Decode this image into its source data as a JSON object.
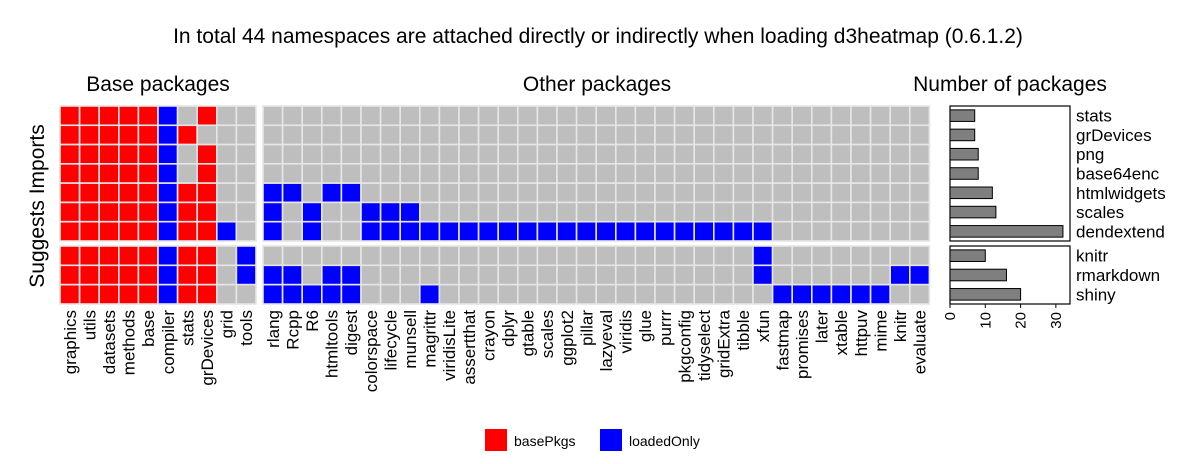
{
  "chart_data": {
    "type": "heatmap",
    "title": "In total 44 namespaces are attached directly or indirectly when loading d3heatmap (0.6.1.2)",
    "ylabel": "Suggests Imports",
    "facet_labels": [
      "Base packages",
      "Other packages",
      "Number of packages"
    ],
    "base_columns": [
      "graphics",
      "utils",
      "datasets",
      "methods",
      "base",
      "compiler",
      "stats",
      "grDevices",
      "grid",
      "tools"
    ],
    "other_columns": [
      "rlang",
      "Rcpp",
      "R6",
      "htmltools",
      "digest",
      "colorspace",
      "lifecycle",
      "munsell",
      "magrittr",
      "viridisLite",
      "assertthat",
      "crayon",
      "dplyr",
      "gtable",
      "scales",
      "ggplot2",
      "pillar",
      "lazyeval",
      "viridis",
      "glue",
      "purrr",
      "pkgconfig",
      "tidyselect",
      "gridExtra",
      "tibble",
      "xfun",
      "fastmap",
      "promises",
      "later",
      "xtable",
      "httpuv",
      "mime",
      "knitr",
      "evaluate"
    ],
    "imports_rows": [
      "stats",
      "grDevices",
      "png",
      "base64enc",
      "htmlwidgets",
      "scales",
      "dendextend"
    ],
    "suggests_rows": [
      "knitr",
      "rmarkdown",
      "shiny"
    ],
    "base_fill": {
      "stats": "RRRRRB_R__",
      "grDevices": "RRRRRBR___",
      "png": "RRRRRB_R__",
      "base64enc": "RRRRRB_R__",
      "htmlwidgets": "RRRRRBRR__",
      "scales": "RRRRRBRR__",
      "dendextend": "RRRRRBRRB_",
      "knitr": "RRRRRBRR_B",
      "rmarkdown": "RRRRRBRR_B",
      "shiny": "RRRRRBRR__"
    },
    "other_fill": {
      "stats": "__________________________________",
      "grDevices": "__________________________________",
      "png": "__________________________________",
      "base64enc": "__________________________________",
      "htmlwidgets": "BB_BB_____________________________",
      "scales": "B_B__BBB__________________________",
      "dendextend": "B_B__BBBBBBBBBBBBBBBBBBBBB________",
      "knitr": "_________________________B________",
      "rmarkdown": "BB_BB____________________B______BB",
      "shiny": "BBBBB___B_________________BBBBBB__"
    },
    "counts": {
      "categories": [
        "stats",
        "grDevices",
        "png",
        "base64enc",
        "htmlwidgets",
        "scales",
        "dendextend",
        "knitr",
        "rmarkdown",
        "shiny"
      ],
      "values": [
        7,
        7,
        8,
        8,
        12,
        13,
        32,
        10,
        16,
        20
      ],
      "xlim": [
        0,
        34
      ],
      "xticks": [
        "0",
        "10",
        "20",
        "30"
      ]
    },
    "legend": [
      {
        "name": "basePkgs",
        "color": "#ff0000"
      },
      {
        "name": "loadedOnly",
        "color": "#0000ff"
      }
    ],
    "colors": {
      "basePkgs": "#ff0000",
      "loadedOnly": "#0000ff",
      "empty": "#bebebe",
      "bar": "#7f7f7f",
      "grid": "#e6e6e6"
    },
    "grid": true,
    "legend_position": "bottom"
  }
}
